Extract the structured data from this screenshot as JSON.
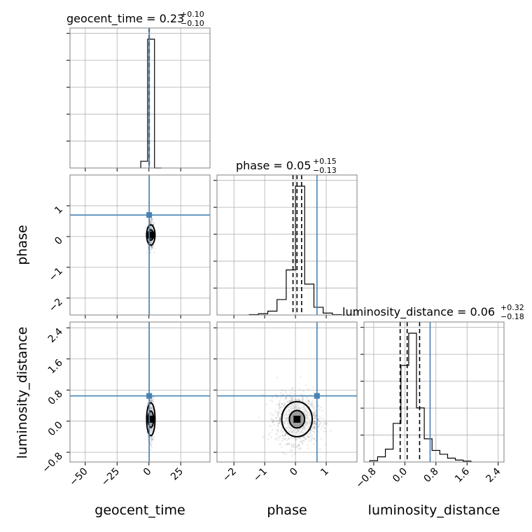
{
  "chart_data": {
    "type": "corner",
    "parameters": [
      "geocent_time",
      "phase",
      "luminosity_distance"
    ],
    "axis_labels": {
      "x": [
        "geocent_time",
        "phase",
        "luminosity_distance"
      ],
      "y": [
        "",
        "phase",
        "luminosity_distance"
      ]
    },
    "titles": [
      {
        "name": "geocent_time",
        "text": "geocent_time = 0.23",
        "plus": "+0.10",
        "minus": "−0.10"
      },
      {
        "name": "phase",
        "text": "phase = 0.05",
        "plus": "+0.15",
        "minus": "−0.13"
      },
      {
        "name": "luminosity_distance",
        "text": "luminosity_distance = 0.06",
        "plus": "+0.32",
        "minus": "−0.18"
      }
    ],
    "ranges": {
      "geocent_time": [
        -62,
        48
      ],
      "phase": [
        -2.55,
        2.0
      ],
      "luminosity_distance": [
        -1.05,
        2.55
      ]
    },
    "ticks": {
      "geocent_time": {
        "values": [
          -50,
          -25,
          0,
          25
        ],
        "labels": [
          "−50",
          "−25",
          "0",
          "25"
        ]
      },
      "phase_x": {
        "values": [
          -2,
          -1,
          0,
          1
        ],
        "labels": [
          "−2",
          "−1",
          "0",
          "1"
        ]
      },
      "phase_y": {
        "values": [
          -2,
          -1,
          0,
          1
        ],
        "labels": [
          "−2",
          "−1",
          "0",
          "1"
        ]
      },
      "luminosity_distance": {
        "values": [
          -0.8,
          0.0,
          0.8,
          1.6,
          2.4
        ],
        "labels": [
          "−0.8",
          "0.0",
          "0.8",
          "1.6",
          "2.4"
        ]
      }
    },
    "diag_y_ticks": 5,
    "truths": {
      "geocent_time": 0.23,
      "phase": 0.7,
      "luminosity_distance": 0.65
    },
    "quantiles": {
      "geocent_time": [
        0.13,
        0.23,
        0.33
      ],
      "phase": [
        -0.08,
        0.05,
        0.2
      ],
      "luminosity_distance": [
        -0.12,
        0.06,
        0.38
      ]
    },
    "histograms": {
      "geocent_time": {
        "edges": [
          -6.4,
          -1.0,
          4.4,
          9.8
        ],
        "counts": [
          5,
          95,
          0
        ]
      },
      "phase": {
        "edges": [
          -1.5,
          -1.2,
          -0.9,
          -0.6,
          -0.3,
          0.0,
          0.3,
          0.6,
          0.9,
          1.2,
          1.5
        ],
        "counts": [
          0.3,
          1,
          3,
          12,
          35,
          100,
          24,
          6,
          1.5,
          0.3
        ]
      },
      "luminosity_distance": {
        "edges": [
          -0.9,
          -0.7,
          -0.5,
          -0.3,
          -0.1,
          0.1,
          0.3,
          0.5,
          0.7,
          0.9,
          1.1,
          1.3,
          1.5,
          1.7
        ],
        "counts": [
          1,
          4,
          10,
          30,
          75,
          100,
          42,
          18,
          9,
          6,
          3,
          1.5,
          0.7
        ]
      }
    },
    "scatter": {
      "geocent_time_vs_phase": {
        "center": [
          1.5,
          0.05
        ],
        "spread": [
          1.2,
          0.22
        ]
      },
      "geocent_time_vs_luminosity_distance": {
        "center": [
          1.5,
          0.05
        ],
        "spread": [
          1.2,
          0.28
        ]
      },
      "phase_vs_luminosity_distance": {
        "center": [
          0.05,
          0.05
        ],
        "spread": [
          0.33,
          0.3
        ]
      }
    },
    "grid": true
  },
  "colors": {
    "truth": "#4682b4",
    "frame": "#808080",
    "grid": "#b0b0b0",
    "marks": "#000000"
  }
}
